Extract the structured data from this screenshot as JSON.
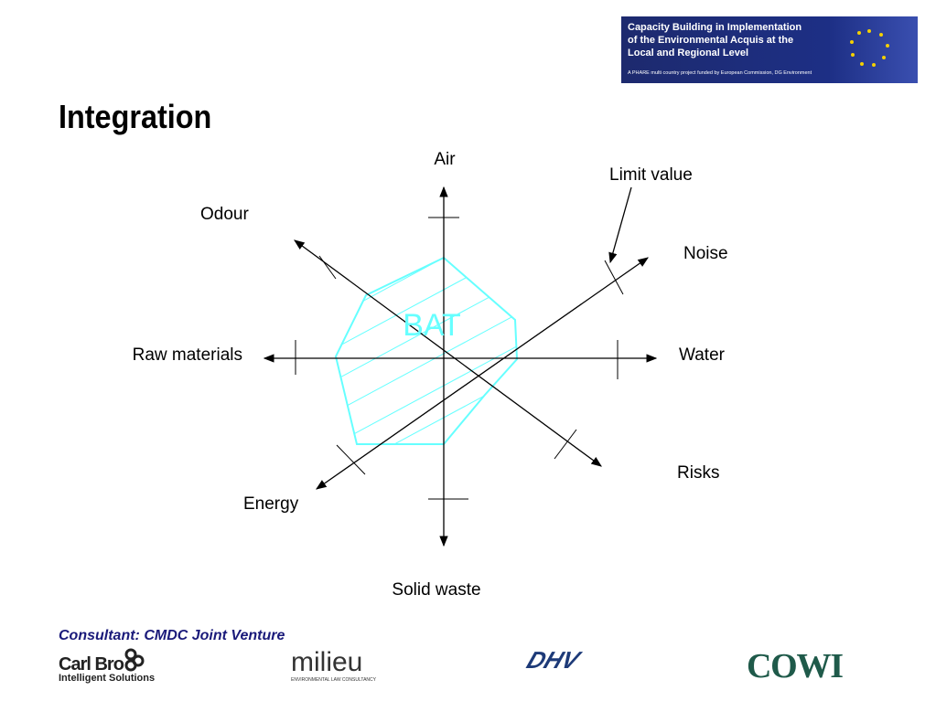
{
  "header": {
    "banner": {
      "lines": [
        "Capacity Building in Implementation",
        "of the Environmental Acquis at the",
        "Local and Regional Level"
      ],
      "note": "A PHARE multi country project funded by European Commission, DG Environment"
    },
    "title": "Integration"
  },
  "diagram": {
    "axes": {
      "air": "Air",
      "noise": "Noise",
      "water": "Water",
      "risks": "Risks",
      "solid_waste": "Solid waste",
      "energy": "Energy",
      "raw_materials": "Raw materials",
      "odour": "Odour"
    },
    "center_label": "BAT",
    "annotation": "Limit value"
  },
  "footer": {
    "consultant": "Consultant: CMDC Joint Venture",
    "logos": {
      "carlbro": "Carl Bro",
      "carlbro_tagline": "Intelligent Solutions",
      "milieu": "milieu",
      "milieu_tagline": "ENVIRONMENTAL LAW CONSULTANCY",
      "dhv": "DHV",
      "cowi": "COWI"
    }
  }
}
